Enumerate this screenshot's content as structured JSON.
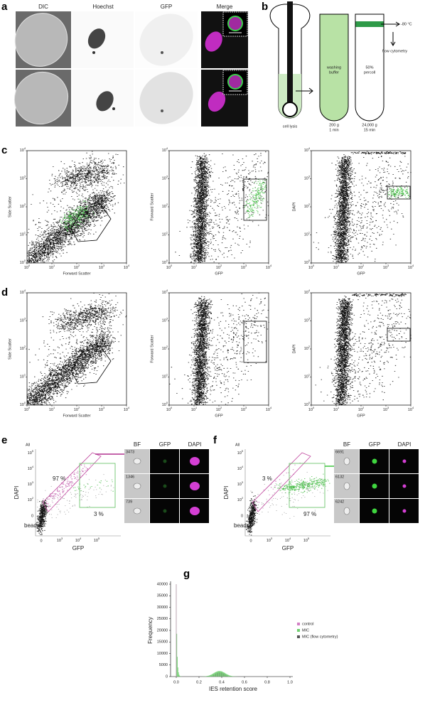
{
  "panel_labels": [
    "a",
    "b",
    "c",
    "d",
    "e",
    "f",
    "g"
  ],
  "a": {
    "columns": [
      "DIC",
      "Hoechst",
      "GFP",
      "Merge"
    ]
  },
  "b": {
    "cell_lysis": "cell lysis",
    "tube2_label": [
      "washing",
      "buffer"
    ],
    "tube2_spin": [
      "200 g",
      "1 min"
    ],
    "tube3_label": [
      "50%",
      "percoll"
    ],
    "tube3_spin": [
      "24,000 g",
      "15 min"
    ],
    "freeze": "-80 °C",
    "flow": "flow cytometry"
  },
  "log_ticks": [
    {
      "base": "10",
      "exp": "0"
    },
    {
      "base": "10",
      "exp": "1"
    },
    {
      "base": "10",
      "exp": "2"
    },
    {
      "base": "10",
      "exp": "3"
    },
    {
      "base": "10",
      "exp": "4"
    }
  ],
  "c": {
    "plots": [
      {
        "ylabel": "Side Scatter",
        "xlabel": "Forward Scatter"
      },
      {
        "ylabel": "Forward Scatter",
        "xlabel": "GFP"
      },
      {
        "ylabel": "DAPI",
        "xlabel": "GFP"
      }
    ]
  },
  "d": {
    "plots": [
      {
        "ylabel": "Side Scatter",
        "xlabel": "Forward Scatter"
      },
      {
        "ylabel": "Forward Scatter",
        "xlabel": "GFP"
      },
      {
        "ylabel": "DAPI",
        "xlabel": "GFP"
      }
    ]
  },
  "e": {
    "all": "All",
    "gate_upper": "97 %",
    "gate_lower": "3 %",
    "beads": "beads",
    "ylabel": "DAPI",
    "xlabel": "GFP",
    "yticks": [
      {
        "base": "10",
        "exp": "5"
      },
      {
        "base": "10",
        "exp": "4"
      },
      {
        "base": "10",
        "exp": "3"
      },
      {
        "base": "10",
        "exp": "2"
      },
      "0"
    ],
    "xticks": [
      "0",
      {
        "base": "10",
        "exp": "3"
      },
      {
        "base": "10",
        "exp": "4"
      },
      {
        "base": "10",
        "exp": "5"
      }
    ],
    "image_headers": [
      "BF",
      "GFP",
      "DAPI"
    ],
    "event_ids": [
      "3473",
      "1346",
      "739"
    ]
  },
  "f": {
    "all": "All",
    "gate_upper": "3 %",
    "gate_lower": "97 %",
    "beads": "beads",
    "ylabel": "DAPI",
    "xlabel": "GFP",
    "yticks": [
      {
        "base": "10",
        "exp": "5"
      },
      {
        "base": "10",
        "exp": "4"
      },
      {
        "base": "10",
        "exp": "3"
      },
      {
        "base": "10",
        "exp": "2"
      },
      "0"
    ],
    "xticks": [
      "0",
      {
        "base": "10",
        "exp": "3"
      },
      {
        "base": "10",
        "exp": "4"
      },
      {
        "base": "10",
        "exp": "5"
      }
    ],
    "image_headers": [
      "BF",
      "GFP",
      "DAPI"
    ],
    "event_ids": [
      "6691",
      "6132",
      "6242"
    ]
  },
  "g": {
    "ylabel": "Frequency",
    "xlabel": "IES retention score",
    "yticks": [
      0,
      5000,
      10000,
      15000,
      20000,
      25000,
      30000,
      35000,
      40000
    ],
    "xticks": [
      "0.0",
      "0.2",
      "0.4",
      "0.6",
      "0.8",
      "1.0"
    ],
    "legend": [
      {
        "name": "control",
        "color": "#d27fc4"
      },
      {
        "name": "MIC",
        "color": "#6fcf6f"
      },
      {
        "name": "MIC (flow cytometry)",
        "color": "#555555"
      }
    ]
  }
}
